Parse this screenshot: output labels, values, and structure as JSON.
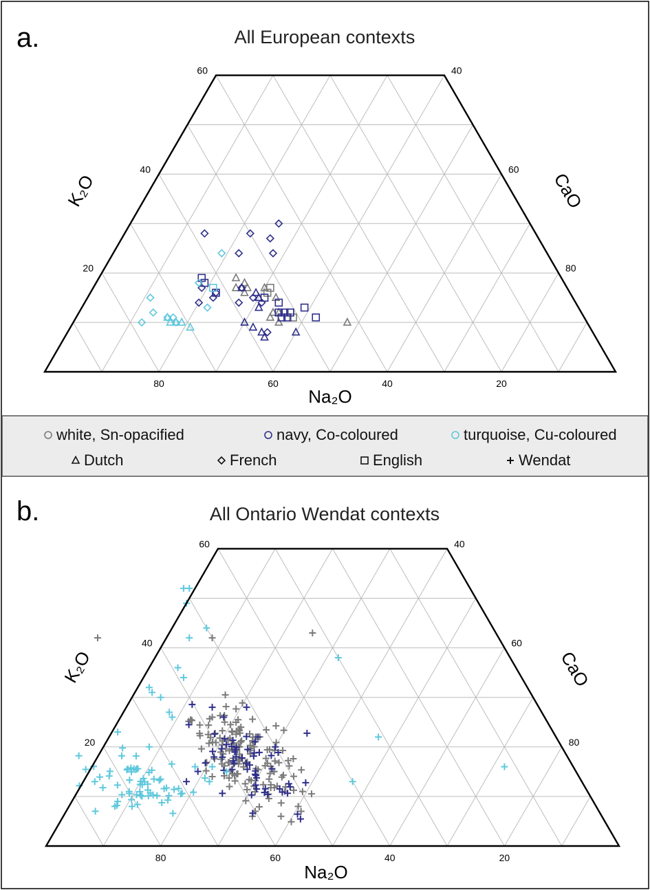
{
  "legend": {
    "items": [
      {
        "label": "white, Sn-opacified",
        "marker": "circle",
        "color": "#7a7a7a"
      },
      {
        "label": "navy, Co-coloured",
        "marker": "circle",
        "color": "#2e2e8a"
      },
      {
        "label": "turquoise, Cu-coloured",
        "marker": "circle",
        "color": "#5fc8dd"
      },
      {
        "label": "Dutch",
        "marker": "triangle",
        "color": "#111111"
      },
      {
        "label": "French",
        "marker": "diamond",
        "color": "#111111"
      },
      {
        "label": "English",
        "marker": "square",
        "color": "#111111"
      },
      {
        "label": "Wendat",
        "marker": "plus",
        "color": "#111111"
      }
    ]
  },
  "colors": {
    "white": "#7a7a7a",
    "navy": "#2e2e8a",
    "turquoise": "#5fc8dd"
  },
  "chart_data": [
    {
      "type": "scatter",
      "subtype": "ternary (truncated at K2O = 60)",
      "panel_label": "a.",
      "title": "All European contexts",
      "axes": {
        "bottom": "Na₂O",
        "left": "K₂O",
        "right": "CaO"
      },
      "ticks": {
        "bottom": [
          "80",
          "60",
          "40",
          "20"
        ],
        "left": [
          "60",
          "40",
          "20"
        ],
        "right": [
          "40",
          "60",
          "80"
        ]
      },
      "grid": true,
      "point_format": "[Na2O, K2O, CaO] in %",
      "series": [
        {
          "color": "white",
          "marker": "triangle",
          "points": [
            [
              57,
              19,
              24
            ],
            [
              56,
              18,
              26
            ],
            [
              57,
              16,
              27
            ],
            [
              58,
              17,
              25
            ],
            [
              56,
              17,
              27
            ],
            [
              53,
              17,
              30
            ],
            [
              52,
              15,
              33
            ],
            [
              54,
              12,
              34
            ],
            [
              55,
              11,
              34
            ],
            [
              53,
              12,
              35
            ],
            [
              54,
              10,
              36
            ],
            [
              42,
              10,
              48
            ]
          ]
        },
        {
          "color": "white",
          "marker": "square",
          "points": [
            [
              52,
              17,
              31
            ],
            [
              53,
              16,
              31
            ],
            [
              51,
              12,
              37
            ],
            [
              51,
              11,
              38
            ]
          ]
        },
        {
          "color": "navy",
          "marker": "diamond",
          "points": [
            [
              58,
              28,
              14
            ],
            [
              50,
              28,
              22
            ],
            [
              44,
              30,
              26
            ],
            [
              47,
              27,
              26
            ],
            [
              48,
              24,
              28
            ],
            [
              54,
              24,
              22
            ],
            [
              64,
              17,
              19
            ],
            [
              62,
              16,
              22
            ],
            [
              63,
              15,
              22
            ],
            [
              66,
              14,
              20
            ],
            [
              59,
              14,
              27
            ],
            [
              57,
              17,
              26
            ],
            [
              55,
              14,
              31
            ],
            [
              56,
              15,
              29
            ],
            [
              57,
              8,
              35
            ]
          ]
        },
        {
          "color": "navy",
          "marker": "triangle",
          "points": [
            [
              57,
              17,
              26
            ],
            [
              55,
              15,
              30
            ],
            [
              55,
              16,
              29
            ],
            [
              60,
              10,
              30
            ],
            [
              59,
              9,
              32
            ],
            [
              58,
              8,
              34
            ],
            [
              58,
              7,
              35
            ],
            [
              52,
              8,
              40
            ],
            [
              56,
              13,
              31
            ]
          ]
        },
        {
          "color": "navy",
          "marker": "square",
          "points": [
            [
              63,
              19,
              18
            ],
            [
              63,
              18,
              19
            ],
            [
              62,
              16,
              22
            ],
            [
              54,
              15,
              31
            ],
            [
              52,
              14,
              34
            ],
            [
              53,
              12,
              35
            ],
            [
              52,
              11,
              37
            ],
            [
              53,
              11,
              36
            ],
            [
              52,
              12,
              36
            ],
            [
              48,
              13,
              39
            ],
            [
              47,
              11,
              42
            ],
            [
              51,
              12,
              37
            ]
          ]
        },
        {
          "color": "turquoise",
          "marker": "diamond",
          "points": [
            [
              57,
              24,
              19
            ],
            [
              64,
              18,
              18
            ],
            [
              65,
              13,
              22
            ],
            [
              74,
              15,
              11
            ],
            [
              75,
              12,
              13
            ],
            [
              78,
              10,
              12
            ],
            [
              73,
              11,
              16
            ],
            [
              72,
              10,
              18
            ],
            [
              72,
              11,
              17
            ]
          ]
        },
        {
          "color": "turquoise",
          "marker": "triangle",
          "points": [
            [
              72,
              10,
              18
            ],
            [
              73,
              11,
              16
            ],
            [
              71,
              10,
              19
            ],
            [
              70,
              9,
              21
            ],
            [
              73,
              10,
              17
            ]
          ]
        },
        {
          "color": "turquoise",
          "marker": "square",
          "points": [
            [
              62,
              17,
              21
            ]
          ]
        }
      ]
    },
    {
      "type": "scatter",
      "subtype": "ternary (truncated at K2O = 60)",
      "panel_label": "b.",
      "title": "All Ontario Wendat contexts",
      "axes": {
        "bottom": "Na₂O",
        "left": "K₂O",
        "right": "CaO"
      },
      "ticks": {
        "bottom": [
          "80",
          "60",
          "40",
          "20"
        ],
        "left": [
          "60",
          "40",
          "20"
        ],
        "right": [
          "40",
          "60",
          "80"
        ]
      },
      "grid": true,
      "point_format": "[Na2O, K2O, CaO] in %",
      "series": [
        {
          "color": "white",
          "marker": "plus",
          "cluster": {
            "center": [
              56,
              18,
              26
            ],
            "spread": [
              4,
              5
            ],
            "count": 140
          },
          "points": [
            [
              60,
              7,
              33
            ],
            [
              61,
              6,
              33
            ],
            [
              56,
              6,
              38
            ],
            [
              52,
              8,
              40
            ],
            [
              52,
              7,
              41
            ],
            [
              70,
              42,
              -12
            ],
            [
              50,
              42,
              8
            ],
            [
              32,
              43,
              25
            ],
            [
              58,
              26,
              16
            ],
            [
              54,
              24,
              22
            ],
            [
              56,
              23,
              21
            ],
            [
              64,
              14,
              22
            ],
            [
              62,
              12,
              26
            ]
          ]
        },
        {
          "color": "navy",
          "marker": "plus",
          "cluster": {
            "center": [
              57,
              17,
              26
            ],
            "spread": [
              4,
              5
            ],
            "count": 55
          },
          "points": [
            [
              57,
              28,
              15
            ],
            [
              51,
              28,
              21
            ],
            [
              56,
              26,
              18
            ],
            [
              52,
              22,
              26
            ],
            [
              50,
              20,
              30
            ],
            [
              69,
              13,
              18
            ]
          ]
        },
        {
          "color": "turquoise",
          "marker": "plus",
          "cluster": {
            "center": [
              77,
              13,
              10
            ],
            "spread": [
              4,
              3
            ],
            "count": 60
          },
          "points": [
            [
              49,
              52,
              -1
            ],
            [
              50,
              52,
              -2
            ],
            [
              51,
              49,
              0
            ],
            [
              50,
              44,
              6
            ],
            [
              54,
              42,
              4
            ],
            [
              59,
              36,
              5
            ],
            [
              59,
              34,
              7
            ],
            [
              66,
              32,
              2
            ],
            [
              66,
              31,
              3
            ],
            [
              65,
              30,
              5
            ],
            [
              65,
              27,
              8
            ],
            [
              65,
              26,
              9
            ],
            [
              76,
              23,
              1
            ],
            [
              72,
              20,
              8
            ],
            [
              66,
              16,
              18
            ],
            [
              63,
              16,
              21
            ],
            [
              61,
              15,
              24
            ],
            [
              65,
              13,
              22
            ],
            [
              30,
              38,
              32
            ],
            [
              31,
              22,
              47
            ],
            [
              12,
              16,
              72
            ],
            [
              40,
              13,
              47
            ],
            [
              85,
              13,
              2
            ],
            [
              80,
              11,
              9
            ],
            [
              84,
              8,
              8
            ],
            [
              83,
              9,
              8
            ],
            [
              81,
              8,
              11
            ]
          ]
        }
      ]
    }
  ]
}
